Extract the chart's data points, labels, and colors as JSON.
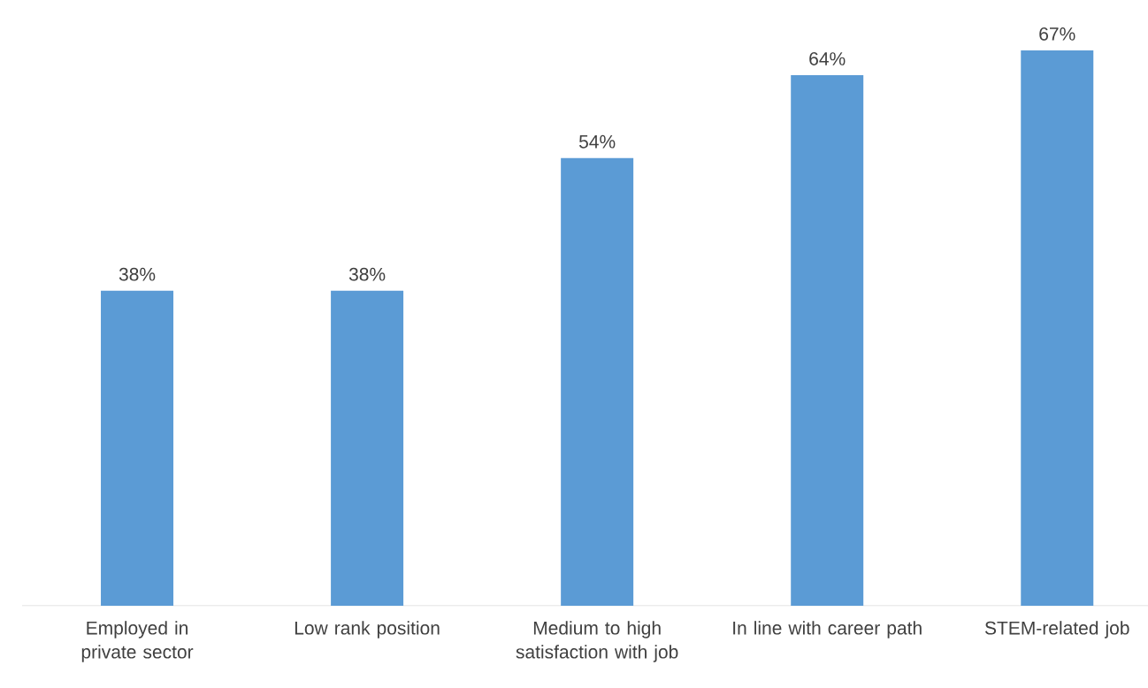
{
  "chart_data": {
    "type": "bar",
    "categories": [
      "Employed in private sector",
      "Low rank position",
      "Medium to high satisfaction with job",
      "In line with career path",
      "STEM-related job"
    ],
    "values": [
      38,
      38,
      54,
      64,
      67
    ],
    "value_labels": [
      "38%",
      "38%",
      "54%",
      "64%",
      "67%"
    ],
    "color": "#5b9bd5"
  }
}
